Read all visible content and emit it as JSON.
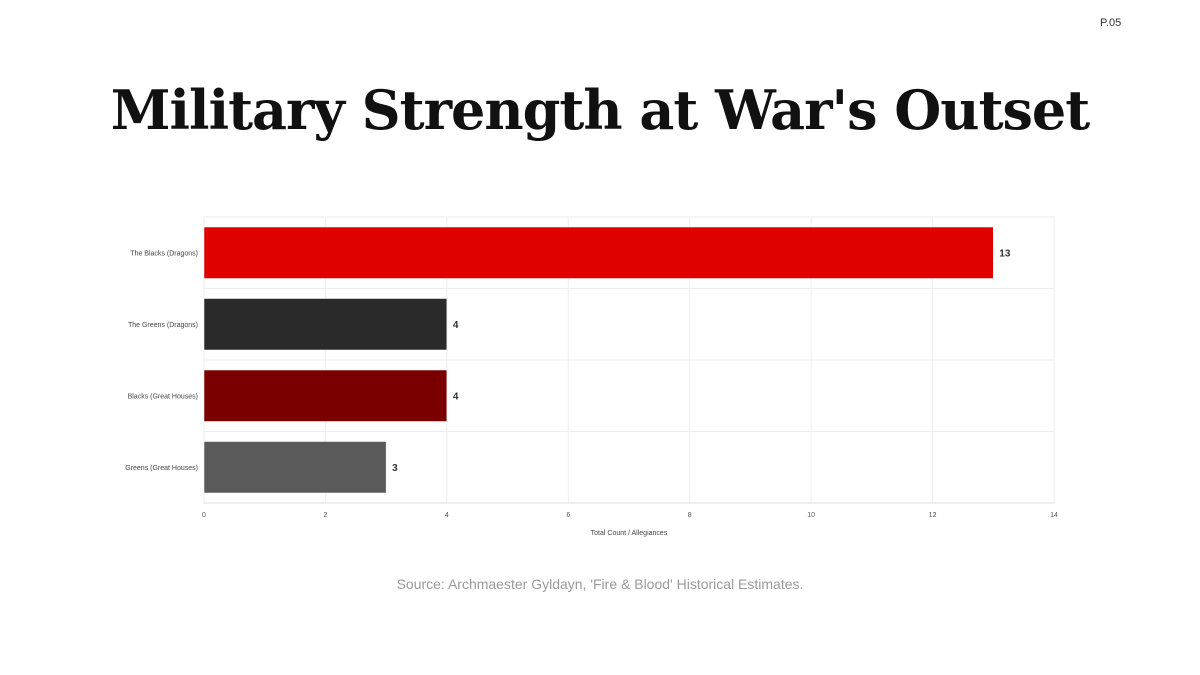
{
  "page_number": "P.05",
  "title": "Military Strength at War's Outset",
  "source": "Source: Archmaester Gyldayn, 'Fire & Blood' Historical Estimates.",
  "chart_data": {
    "type": "bar",
    "orientation": "horizontal",
    "categories": [
      "The Blacks (Dragons)",
      "The Greens (Dragons)",
      "Blacks (Great Houses)",
      "Greens (Great Houses)"
    ],
    "values": [
      13,
      4,
      4,
      3
    ],
    "colors": [
      "#e00000",
      "#2a2a2a",
      "#7a0000",
      "#5a5a5a"
    ],
    "xlabel": "Total Count / Allegiances",
    "xlim": [
      0,
      14
    ],
    "xticks": [
      0,
      2,
      4,
      6,
      8,
      10,
      12,
      14
    ],
    "grid": true,
    "data_labels": true
  }
}
